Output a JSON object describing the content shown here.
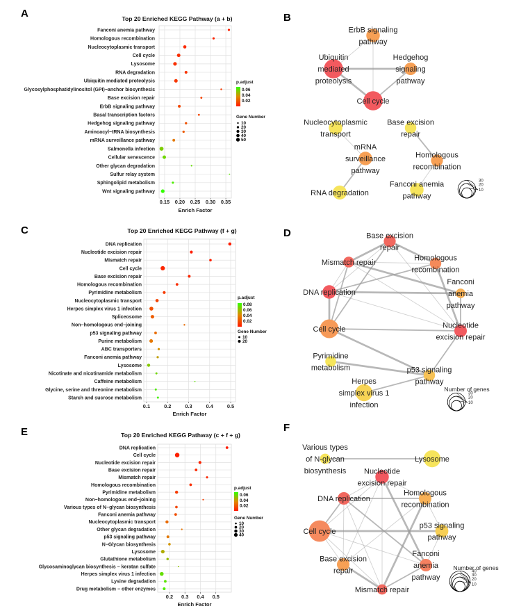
{
  "colors": {
    "padj_low": "#ff1a00",
    "padj_mid": "#e08a00",
    "padj_high": "#33ff00",
    "grid": "#e0e0e0",
    "edge": "#9a9a9a"
  },
  "chart_data": [
    {
      "type": "scatter",
      "panel": "A",
      "title": "Top 20 Enriched KEGG Pathway (a + b)",
      "xlabel": "Enrich Factor",
      "ylabel": "",
      "xlim": [
        0.132,
        0.368
      ],
      "xticks": [
        0.15,
        0.2,
        0.25,
        0.3,
        0.35
      ],
      "xtick_labels": [
        "0.15",
        "0.20",
        "0.25",
        "0.30",
        "0.35"
      ],
      "color_legend": {
        "title": "p.adjust",
        "max": 0.07,
        "ticks": [
          0.06,
          0.04,
          0.02
        ],
        "tick_labels": [
          "0.06",
          "0.04",
          "0.02"
        ]
      },
      "size_legend": {
        "title": "Gene Number",
        "values": [
          10,
          20,
          30,
          40,
          50
        ],
        "labels": [
          "10",
          "20",
          "30",
          "40",
          "50"
        ]
      },
      "grid": true,
      "rows": [
        {
          "name": "Fanconi anemia pathway",
          "x": 0.36,
          "count": 10,
          "padj": 0.002
        },
        {
          "name": "Homologous recombination",
          "x": 0.31,
          "count": 10,
          "padj": 0.003
        },
        {
          "name": "Nucleocytoplasmic transport",
          "x": 0.216,
          "count": 22,
          "padj": 0.005
        },
        {
          "name": "Cell cycle",
          "x": 0.196,
          "count": 25,
          "padj": 0.006
        },
        {
          "name": "Lysosome",
          "x": 0.184,
          "count": 27,
          "padj": 0.007
        },
        {
          "name": "RNA degradation",
          "x": 0.22,
          "count": 16,
          "padj": 0.008
        },
        {
          "name": "Ubiquitin mediated proteolysis",
          "x": 0.187,
          "count": 26,
          "padj": 0.009
        },
        {
          "name": "Glycosylphosphatidylinositol (GPI)−anchor biosynthesis",
          "x": 0.335,
          "count": 6,
          "padj": 0.01
        },
        {
          "name": "Base excision repair",
          "x": 0.27,
          "count": 8,
          "padj": 0.012
        },
        {
          "name": "ErbB signaling pathway",
          "x": 0.198,
          "count": 16,
          "padj": 0.014
        },
        {
          "name": "Basal transcription factors",
          "x": 0.262,
          "count": 8,
          "padj": 0.015
        },
        {
          "name": "Hedgehog signaling pathway",
          "x": 0.22,
          "count": 11,
          "padj": 0.017
        },
        {
          "name": "Aminoacyl−tRNA biosynthesis",
          "x": 0.212,
          "count": 11,
          "padj": 0.02
        },
        {
          "name": "mRNA surveillance pathway",
          "x": 0.18,
          "count": 15,
          "padj": 0.03
        },
        {
          "name": "Salmonella infection",
          "x": 0.14,
          "count": 33,
          "padj": 0.055
        },
        {
          "name": "Cellular senescence",
          "x": 0.149,
          "count": 25,
          "padj": 0.058
        },
        {
          "name": "Other glycan degradation",
          "x": 0.238,
          "count": 5,
          "padj": 0.06
        },
        {
          "name": "Sulfur relay system",
          "x": 0.362,
          "count": 3,
          "padj": 0.062
        },
        {
          "name": "Sphingolipid metabolism",
          "x": 0.177,
          "count": 10,
          "padj": 0.065
        },
        {
          "name": "Wnt signaling pathway",
          "x": 0.144,
          "count": 27,
          "padj": 0.07
        }
      ]
    },
    {
      "type": "scatter",
      "panel": "C",
      "title": "Top 20 Enriched KEGG Pathway (f + g)",
      "xlabel": "Enrich Factor",
      "ylabel": "",
      "xlim": [
        0.087,
        0.523
      ],
      "xticks": [
        0.1,
        0.2,
        0.3,
        0.4,
        0.5
      ],
      "xtick_labels": [
        "0.1",
        "0.2",
        "0.3",
        "0.4",
        "0.5"
      ],
      "color_legend": {
        "title": "p.adjust",
        "max": 0.085,
        "ticks": [
          0.08,
          0.06,
          0.04,
          0.02
        ],
        "tick_labels": [
          "0.08",
          "0.06",
          "0.04",
          "0.02"
        ]
      },
      "size_legend": {
        "title": "Gene Number",
        "values": [
          10,
          20
        ],
        "labels": [
          "10",
          "20"
        ]
      },
      "grid": true,
      "rows": [
        {
          "name": "DNA replication",
          "x": 0.496,
          "count": 14,
          "padj": 0.001
        },
        {
          "name": "Nucleotide excision repair",
          "x": 0.313,
          "count": 12,
          "padj": 0.002
        },
        {
          "name": "Mismatch repair",
          "x": 0.404,
          "count": 9,
          "padj": 0.003
        },
        {
          "name": "Cell cycle",
          "x": 0.177,
          "count": 27,
          "padj": 0.004
        },
        {
          "name": "Base excision repair",
          "x": 0.303,
          "count": 11,
          "padj": 0.005
        },
        {
          "name": "Homologous recombination",
          "x": 0.245,
          "count": 10,
          "padj": 0.007
        },
        {
          "name": "Pyrimidine metabolism",
          "x": 0.184,
          "count": 12,
          "padj": 0.012
        },
        {
          "name": "Nucleocytoplasmic transport",
          "x": 0.15,
          "count": 15,
          "padj": 0.015
        },
        {
          "name": "Herpes simplex virus 1 infection",
          "x": 0.123,
          "count": 22,
          "padj": 0.02
        },
        {
          "name": "Spliceosome",
          "x": 0.128,
          "count": 18,
          "padj": 0.025
        },
        {
          "name": "Non−homologous end−joining",
          "x": 0.28,
          "count": 4,
          "padj": 0.03
        },
        {
          "name": "p53 signaling pathway",
          "x": 0.143,
          "count": 10,
          "padj": 0.03
        },
        {
          "name": "Purine metabolism",
          "x": 0.122,
          "count": 18,
          "padj": 0.035
        },
        {
          "name": "ABC transporters",
          "x": 0.158,
          "count": 7,
          "padj": 0.045
        },
        {
          "name": "Fanconi anemia pathway",
          "x": 0.153,
          "count": 7,
          "padj": 0.05
        },
        {
          "name": "Lysosome",
          "x": 0.11,
          "count": 14,
          "padj": 0.065
        },
        {
          "name": "Nicotinate and nicotinamide metabolism",
          "x": 0.147,
          "count": 6,
          "padj": 0.07
        },
        {
          "name": "Caffeine metabolism",
          "x": 0.33,
          "count": 2,
          "padj": 0.075
        },
        {
          "name": "Glycine, serine and threonine metabolism",
          "x": 0.144,
          "count": 6,
          "padj": 0.078
        },
        {
          "name": "Starch and sucrose metabolism",
          "x": 0.154,
          "count": 6,
          "padj": 0.08
        }
      ]
    },
    {
      "type": "scatter",
      "panel": "E",
      "title": "Top 20 Enriched KEGG Pathway (c + f + g)",
      "xlabel": "Enrich Factor",
      "ylabel": "",
      "xlim": [
        0.124,
        0.6
      ],
      "xticks": [
        0.2,
        0.3,
        0.4,
        0.5
      ],
      "xtick_labels": [
        "0.2",
        "0.3",
        "0.4",
        "0.5"
      ],
      "color_legend": {
        "title": "p.adjust",
        "max": 0.07,
        "ticks": [
          0.06,
          0.04,
          0.02
        ],
        "tick_labels": [
          "0.06",
          "0.04",
          "0.02"
        ]
      },
      "size_legend": {
        "title": "Gene Number",
        "values": [
          10,
          20,
          30,
          40
        ],
        "labels": [
          "10",
          "20",
          "30",
          "40"
        ]
      },
      "grid": true,
      "rows": [
        {
          "name": "DNA replication",
          "x": 0.572,
          "count": 12,
          "padj": 0.001
        },
        {
          "name": "Cell cycle",
          "x": 0.25,
          "count": 35,
          "padj": 0.002
        },
        {
          "name": "Nucleotide excision repair",
          "x": 0.397,
          "count": 14,
          "padj": 0.003
        },
        {
          "name": "Base excision repair",
          "x": 0.372,
          "count": 12,
          "padj": 0.004
        },
        {
          "name": "Mismatch repair",
          "x": 0.443,
          "count": 8,
          "padj": 0.005
        },
        {
          "name": "Homologous recombination",
          "x": 0.337,
          "count": 12,
          "padj": 0.007
        },
        {
          "name": "Pyrimidine metabolism",
          "x": 0.246,
          "count": 16,
          "padj": 0.01
        },
        {
          "name": "Non−homologous end−joining",
          "x": 0.418,
          "count": 4,
          "padj": 0.012
        },
        {
          "name": "Various types of N−glycan biosynthesis",
          "x": 0.245,
          "count": 11,
          "padj": 0.014
        },
        {
          "name": "Fanconi anemia pathway",
          "x": 0.24,
          "count": 12,
          "padj": 0.016
        },
        {
          "name": "Nucleocytoplasmic transport",
          "x": 0.184,
          "count": 16,
          "padj": 0.025
        },
        {
          "name": "Other glycan degradation",
          "x": 0.28,
          "count": 4,
          "padj": 0.028
        },
        {
          "name": "p53 signaling pathway",
          "x": 0.19,
          "count": 13,
          "padj": 0.03
        },
        {
          "name": "N−Glycan biosynthesis",
          "x": 0.2,
          "count": 11,
          "padj": 0.038
        },
        {
          "name": "Lysosome",
          "x": 0.157,
          "count": 22,
          "padj": 0.045
        },
        {
          "name": "Glutathione metabolism",
          "x": 0.188,
          "count": 10,
          "padj": 0.05
        },
        {
          "name": "Glycosaminoglycan biosynthesis − keratan sulfate",
          "x": 0.258,
          "count": 3,
          "padj": 0.052
        },
        {
          "name": "Herpes simplex virus 1 infection",
          "x": 0.15,
          "count": 25,
          "padj": 0.06
        },
        {
          "name": "Lysine degradation",
          "x": 0.173,
          "count": 12,
          "padj": 0.062
        },
        {
          "name": "Drug metabolism − other enzymes",
          "x": 0.166,
          "count": 13,
          "padj": 0.065
        }
      ]
    }
  ],
  "networks": [
    {
      "panel": "B",
      "legend_title": "",
      "size_legend": [
        "30",
        "20",
        "10"
      ],
      "nodes": [
        {
          "lines": [
            "ErbB signaling",
            "pathway"
          ],
          "genes": 14,
          "color": "#f7a055"
        },
        {
          "lines": [
            "Ubiquitin",
            "mediated",
            "proteolysis"
          ],
          "genes": 28,
          "color": "#f25a5f"
        },
        {
          "lines": [
            "Hedgehog",
            "signaling",
            "pathway"
          ],
          "genes": 12,
          "color": "#f7a055"
        },
        {
          "lines": [
            "Cell cycle"
          ],
          "genes": 28,
          "color": "#f25a5f"
        },
        {
          "lines": [
            "Nucleocytoplasmic",
            "transport"
          ],
          "genes": 14,
          "color": "#f6e45c"
        },
        {
          "lines": [
            "Base excision",
            "repair"
          ],
          "genes": 10,
          "color": "#f6e45c"
        },
        {
          "lines": [
            "mRNA",
            "surveillance",
            "pathway"
          ],
          "genes": 14,
          "color": "#f7a055"
        },
        {
          "lines": [
            "Homologous",
            "recombination"
          ],
          "genes": 11,
          "color": "#f7a055"
        },
        {
          "lines": [
            "RNA degradation"
          ],
          "genes": 15,
          "color": "#f6e45c"
        },
        {
          "lines": [
            "Fanconi anemia",
            "pathway"
          ],
          "genes": 14,
          "color": "#f6e45c"
        }
      ],
      "edges": [
        [
          1,
          2,
          3
        ],
        [
          1,
          3,
          3
        ],
        [
          2,
          3,
          2
        ],
        [
          0,
          3,
          1
        ],
        [
          0,
          1,
          1
        ],
        [
          4,
          6,
          1
        ],
        [
          6,
          8,
          2
        ],
        [
          5,
          7,
          2
        ],
        [
          7,
          9,
          1
        ]
      ]
    },
    {
      "panel": "D",
      "legend_title": "Number of genes",
      "size_legend": [
        "30",
        "20",
        "10"
      ],
      "nodes": [
        {
          "lines": [
            "Base excision",
            "repair"
          ],
          "genes": 11,
          "color": "#f2685f"
        },
        {
          "lines": [
            "Mismatch repair"
          ],
          "genes": 9,
          "color": "#f2685f"
        },
        {
          "lines": [
            "Homologous",
            "recombination"
          ],
          "genes": 10,
          "color": "#f58a5a"
        },
        {
          "lines": [
            "DNA replication"
          ],
          "genes": 14,
          "color": "#f25a5f"
        },
        {
          "lines": [
            "Fanconi",
            "anemia",
            "pathway"
          ],
          "genes": 7,
          "color": "#f7b055"
        },
        {
          "lines": [
            "Cell cycle"
          ],
          "genes": 27,
          "color": "#f79a58"
        },
        {
          "lines": [
            "Nucleotide",
            "excision repair"
          ],
          "genes": 12,
          "color": "#f25a5f"
        },
        {
          "lines": [
            "Pyrimidine",
            "metabolism"
          ],
          "genes": 9,
          "color": "#f6e65c"
        },
        {
          "lines": [
            "p53 signaling",
            "pathway"
          ],
          "genes": 10,
          "color": "#f7c255"
        },
        {
          "lines": [
            "Herpes",
            "simplex virus 1",
            "infection"
          ],
          "genes": 22,
          "color": "#f7d455"
        }
      ],
      "edges": [
        [
          0,
          1,
          3
        ],
        [
          0,
          2,
          3
        ],
        [
          0,
          5,
          2
        ],
        [
          0,
          6,
          1
        ],
        [
          1,
          2,
          1
        ],
        [
          1,
          3,
          1
        ],
        [
          1,
          5,
          2
        ],
        [
          1,
          4,
          3
        ],
        [
          1,
          6,
          1
        ],
        [
          2,
          3,
          2
        ],
        [
          2,
          6,
          3
        ],
        [
          3,
          5,
          3
        ],
        [
          3,
          4,
          3
        ],
        [
          3,
          6,
          1
        ],
        [
          4,
          6,
          2
        ],
        [
          5,
          6,
          2
        ],
        [
          5,
          8,
          3
        ],
        [
          6,
          8,
          2
        ],
        [
          7,
          8,
          3
        ],
        [
          9,
          8,
          2
        ],
        [
          3,
          0,
          1
        ]
      ]
    },
    {
      "panel": "F",
      "legend_title": "Number of genes",
      "size_legend": [
        "40",
        "30",
        "20",
        "10"
      ],
      "nodes": [
        {
          "lines": [
            "Various types",
            "of N-glycan",
            "biosynthesis"
          ],
          "genes": 8,
          "color": "#f6e45c"
        },
        {
          "lines": [
            "Lysosome"
          ],
          "genes": 22,
          "color": "#f6e45c"
        },
        {
          "lines": [
            "Nucleotide",
            "excision repair"
          ],
          "genes": 14,
          "color": "#f2585f"
        },
        {
          "lines": [
            "DNA replication"
          ],
          "genes": 12,
          "color": "#f2685f"
        },
        {
          "lines": [
            "Homologous",
            "recombination"
          ],
          "genes": 12,
          "color": "#f7b055"
        },
        {
          "lines": [
            "Cell cycle"
          ],
          "genes": 35,
          "color": "#f58a5e"
        },
        {
          "lines": [
            "p53 signaling",
            "pathway"
          ],
          "genes": 13,
          "color": "#f7cf55"
        },
        {
          "lines": [
            "Base excision",
            "repair"
          ],
          "genes": 12,
          "color": "#f7a055"
        },
        {
          "lines": [
            "Fanconi",
            "anemia",
            "pathway"
          ],
          "genes": 12,
          "color": "#f58060"
        },
        {
          "lines": [
            "Mismatch repair"
          ],
          "genes": 8,
          "color": "#f2685f"
        }
      ],
      "edges": [
        [
          0,
          1,
          2
        ],
        [
          5,
          6,
          3
        ],
        [
          3,
          4,
          2
        ],
        [
          2,
          9,
          1
        ],
        [
          2,
          8,
          3
        ],
        [
          4,
          9,
          3
        ],
        [
          4,
          7,
          1
        ],
        [
          3,
          8,
          2
        ],
        [
          3,
          5,
          2
        ],
        [
          3,
          9,
          1
        ],
        [
          3,
          7,
          1
        ],
        [
          5,
          2,
          1
        ],
        [
          5,
          7,
          1
        ],
        [
          5,
          9,
          1
        ],
        [
          5,
          8,
          1
        ],
        [
          7,
          9,
          3
        ],
        [
          8,
          9,
          2
        ],
        [
          2,
          4,
          1
        ],
        [
          2,
          7,
          1
        ],
        [
          4,
          6,
          1
        ],
        [
          6,
          8,
          1
        ],
        [
          2,
          3,
          1
        ]
      ]
    }
  ]
}
